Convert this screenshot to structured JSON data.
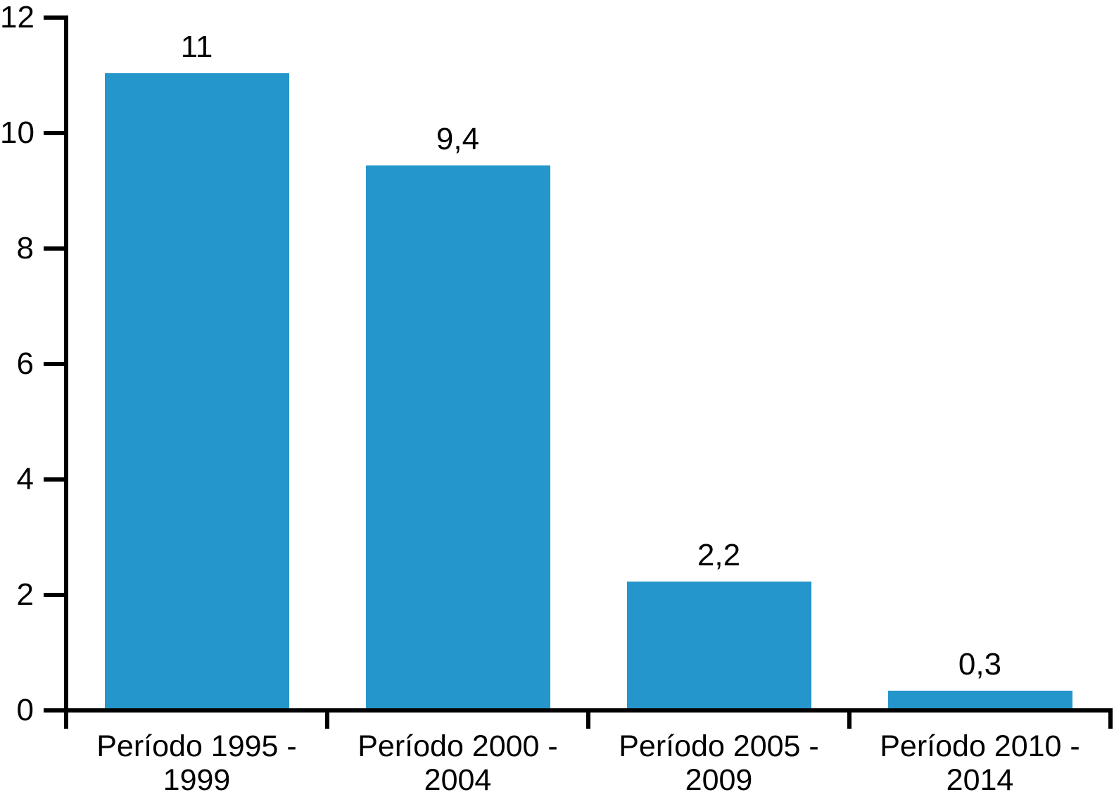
{
  "chart_data": {
    "type": "bar",
    "title": "",
    "xlabel": "",
    "ylabel": "",
    "categories": [
      [
        "Período 1995 -",
        "1999"
      ],
      [
        "Período 2000 -",
        "2004"
      ],
      [
        "Período 2005 -",
        "2009"
      ],
      [
        "Período 2010 -",
        "2014"
      ]
    ],
    "values": [
      11,
      9.4,
      2.2,
      0.3
    ],
    "value_labels": [
      "11",
      "9,4",
      "2,2",
      "0,3"
    ],
    "y_ticks": [
      0,
      2,
      4,
      6,
      8,
      10,
      12
    ],
    "y_tick_labels": [
      "0",
      "2",
      "4",
      "6",
      "8",
      "10",
      "12"
    ],
    "ylim": [
      0,
      12
    ],
    "grid": false,
    "legend": false,
    "bar_color": "#2496CB",
    "axis_color": "#000000",
    "text_color": "#000000"
  }
}
